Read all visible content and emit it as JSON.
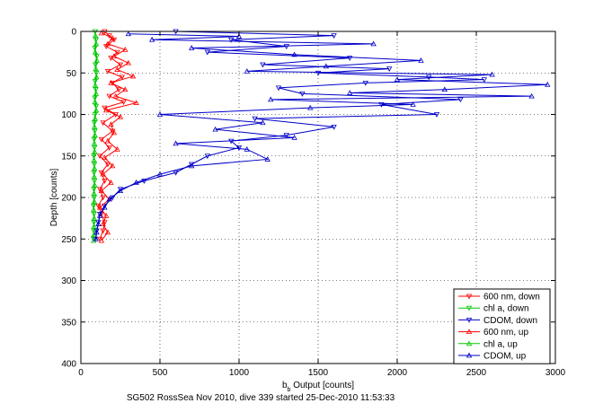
{
  "chart_data": {
    "type": "scatter",
    "title": "",
    "xlabel_base": "b",
    "xlabel_sub": "b",
    "xlabel_rest": " Output [counts]",
    "ylabel": "Depth [counts]",
    "footer": "SG502 RossSea Nov 2010, dive 339 started 25-Dec-2010 11:53:33",
    "xlim": [
      0,
      3000
    ],
    "ylim": [
      0,
      400
    ],
    "y_reversed": true,
    "grid": true,
    "legend_position": "bottom-right",
    "xticks": [
      0,
      500,
      1000,
      1500,
      2000,
      2500,
      3000
    ],
    "yticks": [
      0,
      50,
      100,
      150,
      200,
      250,
      300,
      350,
      400
    ],
    "series": [
      {
        "name": "600 nm, down",
        "color": "#ff0000",
        "marker": "triangle-down",
        "points": [
          [
            150,
            0
          ],
          [
            180,
            5
          ],
          [
            210,
            10
          ],
          [
            160,
            18
          ],
          [
            230,
            25
          ],
          [
            190,
            32
          ],
          [
            250,
            40
          ],
          [
            170,
            48
          ],
          [
            260,
            55
          ],
          [
            200,
            62
          ],
          [
            240,
            70
          ],
          [
            180,
            78
          ],
          [
            270,
            85
          ],
          [
            150,
            92
          ],
          [
            220,
            100
          ],
          [
            140,
            110
          ],
          [
            200,
            120
          ],
          [
            130,
            130
          ],
          [
            180,
            140
          ],
          [
            120,
            150
          ],
          [
            170,
            160
          ],
          [
            130,
            170
          ],
          [
            150,
            180
          ],
          [
            120,
            190
          ],
          [
            140,
            200
          ],
          [
            110,
            210
          ],
          [
            130,
            220
          ],
          [
            150,
            230
          ],
          [
            140,
            240
          ],
          [
            120,
            250
          ]
        ]
      },
      {
        "name": "chl a, down",
        "color": "#00c800",
        "marker": "triangle-down",
        "points": [
          [
            90,
            0
          ],
          [
            95,
            10
          ],
          [
            88,
            20
          ],
          [
            100,
            30
          ],
          [
            92,
            40
          ],
          [
            98,
            50
          ],
          [
            90,
            60
          ],
          [
            94,
            70
          ],
          [
            88,
            80
          ],
          [
            96,
            90
          ],
          [
            90,
            100
          ],
          [
            85,
            110
          ],
          [
            88,
            120
          ],
          [
            84,
            130
          ],
          [
            86,
            140
          ],
          [
            82,
            150
          ],
          [
            85,
            160
          ],
          [
            83,
            170
          ],
          [
            86,
            180
          ],
          [
            82,
            190
          ],
          [
            84,
            200
          ],
          [
            80,
            210
          ],
          [
            83,
            220
          ],
          [
            82,
            230
          ],
          [
            81,
            240
          ],
          [
            80,
            250
          ]
        ]
      },
      {
        "name": "CDOM, down",
        "color": "#0000c8",
        "marker": "triangle-down",
        "points": [
          [
            600,
            0
          ],
          [
            1600,
            5
          ],
          [
            950,
            10
          ],
          [
            1300,
            18
          ],
          [
            800,
            25
          ],
          [
            1700,
            32
          ],
          [
            1150,
            40
          ],
          [
            1950,
            45
          ],
          [
            1500,
            50
          ],
          [
            2200,
            55
          ],
          [
            2550,
            58
          ],
          [
            1800,
            62
          ],
          [
            1250,
            68
          ],
          [
            1400,
            75
          ],
          [
            2400,
            82
          ],
          [
            1900,
            88
          ],
          [
            2250,
            100
          ],
          [
            1100,
            105
          ],
          [
            1600,
            115
          ],
          [
            1300,
            125
          ],
          [
            950,
            132
          ],
          [
            1000,
            140
          ],
          [
            800,
            150
          ],
          [
            700,
            160
          ],
          [
            600,
            170
          ],
          [
            400,
            180
          ],
          [
            250,
            190
          ],
          [
            200,
            200
          ],
          [
            150,
            210
          ],
          [
            120,
            220
          ],
          [
            110,
            230
          ],
          [
            100,
            240
          ],
          [
            90,
            250
          ]
        ]
      },
      {
        "name": "600 nm, up",
        "color": "#ff0000",
        "marker": "triangle-up",
        "points": [
          [
            130,
            2
          ],
          [
            200,
            8
          ],
          [
            170,
            15
          ],
          [
            280,
            22
          ],
          [
            210,
            30
          ],
          [
            300,
            38
          ],
          [
            230,
            46
          ],
          [
            330,
            54
          ],
          [
            190,
            62
          ],
          [
            280,
            70
          ],
          [
            220,
            78
          ],
          [
            350,
            86
          ],
          [
            160,
            95
          ],
          [
            250,
            103
          ],
          [
            190,
            112
          ],
          [
            210,
            122
          ],
          [
            170,
            132
          ],
          [
            230,
            142
          ],
          [
            150,
            152
          ],
          [
            200,
            162
          ],
          [
            140,
            172
          ],
          [
            190,
            182
          ],
          [
            130,
            192
          ],
          [
            180,
            202
          ],
          [
            120,
            212
          ],
          [
            160,
            222
          ],
          [
            140,
            232
          ],
          [
            170,
            242
          ],
          [
            130,
            252
          ]
        ]
      },
      {
        "name": "chl a, up",
        "color": "#00c800",
        "marker": "triangle-up",
        "points": [
          [
            92,
            5
          ],
          [
            97,
            15
          ],
          [
            90,
            25
          ],
          [
            101,
            35
          ],
          [
            94,
            45
          ],
          [
            99,
            55
          ],
          [
            91,
            65
          ],
          [
            96,
            75
          ],
          [
            89,
            85
          ],
          [
            97,
            95
          ],
          [
            90,
            105
          ],
          [
            86,
            115
          ],
          [
            89,
            125
          ],
          [
            85,
            135
          ],
          [
            87,
            145
          ],
          [
            83,
            155
          ],
          [
            86,
            165
          ],
          [
            84,
            175
          ],
          [
            87,
            185
          ],
          [
            83,
            195
          ],
          [
            85,
            205
          ],
          [
            81,
            215
          ],
          [
            84,
            225
          ],
          [
            83,
            235
          ],
          [
            82,
            245
          ],
          [
            81,
            252
          ]
        ]
      },
      {
        "name": "CDOM, up",
        "color": "#0000c8",
        "marker": "triangle-up",
        "points": [
          [
            300,
            3
          ],
          [
            1000,
            6
          ],
          [
            450,
            10
          ],
          [
            1850,
            15
          ],
          [
            700,
            20
          ],
          [
            1350,
            28
          ],
          [
            2150,
            35
          ],
          [
            1550,
            42
          ],
          [
            1050,
            48
          ],
          [
            2600,
            52
          ],
          [
            2000,
            58
          ],
          [
            2950,
            64
          ],
          [
            2300,
            70
          ],
          [
            1700,
            74
          ],
          [
            2850,
            78
          ],
          [
            1200,
            82
          ],
          [
            2100,
            88
          ],
          [
            1450,
            92
          ],
          [
            500,
            100
          ],
          [
            1150,
            110
          ],
          [
            850,
            118
          ],
          [
            1350,
            128
          ],
          [
            600,
            135
          ],
          [
            1050,
            142
          ],
          [
            1180,
            154
          ],
          [
            700,
            162
          ],
          [
            500,
            172
          ],
          [
            350,
            182
          ],
          [
            250,
            192
          ],
          [
            180,
            202
          ],
          [
            150,
            212
          ],
          [
            120,
            222
          ],
          [
            110,
            232
          ],
          [
            100,
            242
          ],
          [
            95,
            250
          ]
        ]
      }
    ]
  }
}
